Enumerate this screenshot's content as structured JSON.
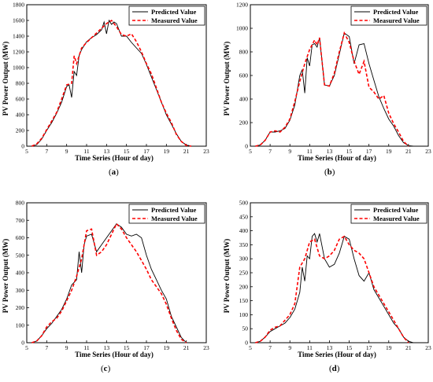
{
  "chart_data": [
    {
      "type": "line",
      "panel_label": "a",
      "xlabel": "Time Series (Hour of day)",
      "ylabel": "PV Power Output (MW)",
      "xlim": [
        5,
        23
      ],
      "ylim": [
        0,
        1800
      ],
      "xticks": [
        5,
        7,
        9,
        11,
        13,
        15,
        17,
        19,
        21,
        23
      ],
      "yticks": [
        0,
        200,
        400,
        600,
        800,
        1000,
        1200,
        1400,
        1600,
        1800
      ],
      "legend_position": "top-right",
      "series": [
        {
          "name": "Predicted Value",
          "color": "#000000",
          "x": [
            5.5,
            6,
            6.5,
            7,
            7.5,
            8,
            8.5,
            9,
            9.25,
            9.5,
            9.75,
            10,
            10.25,
            10.5,
            11,
            11.5,
            12,
            12.5,
            12.75,
            13,
            13.25,
            13.5,
            13.75,
            14,
            14.5,
            15,
            15.5,
            16,
            16.5,
            17,
            17.5,
            18,
            18.5,
            19,
            19.5,
            20,
            20.5,
            21,
            21.5
          ],
          "y": [
            0,
            20,
            90,
            200,
            300,
            420,
            560,
            760,
            780,
            620,
            950,
            900,
            1150,
            1230,
            1330,
            1380,
            1420,
            1480,
            1580,
            1430,
            1600,
            1550,
            1580,
            1560,
            1400,
            1400,
            1320,
            1250,
            1180,
            1040,
            880,
            720,
            560,
            400,
            280,
            160,
            60,
            15,
            0
          ]
        },
        {
          "name": "Measured Value",
          "color": "#ff0000",
          "x": [
            5.5,
            6,
            6.5,
            7,
            7.5,
            8,
            8.5,
            9,
            9.5,
            9.75,
            10,
            10.5,
            11,
            11.5,
            12,
            12.5,
            13,
            13.5,
            14,
            14.5,
            15,
            15.5,
            16,
            16.5,
            17,
            17.5,
            18,
            18.5,
            19,
            19.5,
            20,
            20.5,
            21,
            21.5
          ],
          "y": [
            0,
            30,
            100,
            210,
            320,
            430,
            600,
            780,
            800,
            1150,
            1050,
            1250,
            1320,
            1380,
            1440,
            1500,
            1560,
            1600,
            1520,
            1420,
            1400,
            1430,
            1330,
            1200,
            1050,
            920,
            740,
            560,
            420,
            300,
            150,
            60,
            10,
            0
          ]
        }
      ]
    },
    {
      "type": "line",
      "panel_label": "b",
      "xlabel": "Time Series (Hour of day)",
      "ylabel": "PV Power Output (MW)",
      "xlim": [
        5,
        23
      ],
      "ylim": [
        0,
        1200
      ],
      "xticks": [
        5,
        7,
        9,
        11,
        13,
        15,
        17,
        19,
        21,
        23
      ],
      "yticks": [
        0,
        200,
        400,
        600,
        800,
        1000,
        1200
      ],
      "legend_position": "top-right",
      "series": [
        {
          "name": "Predicted Value",
          "color": "#000000",
          "x": [
            5.5,
            6,
            6.5,
            7,
            7.5,
            8,
            8.5,
            9,
            9.5,
            10,
            10.25,
            10.5,
            10.75,
            11,
            11.25,
            11.5,
            11.75,
            12,
            12.5,
            13,
            13.5,
            14,
            14.5,
            15,
            15.5,
            16,
            16.5,
            17,
            17.5,
            18,
            18.5,
            19,
            19.5,
            20,
            20.5,
            21,
            21.5
          ],
          "y": [
            0,
            10,
            50,
            120,
            120,
            130,
            150,
            220,
            350,
            600,
            650,
            450,
            750,
            680,
            860,
            870,
            840,
            920,
            520,
            510,
            600,
            780,
            960,
            930,
            700,
            860,
            870,
            700,
            560,
            420,
            320,
            230,
            170,
            90,
            30,
            5,
            0
          ]
        },
        {
          "name": "Measured Value",
          "color": "#ff0000",
          "x": [
            5.5,
            6,
            6.5,
            7,
            7.5,
            8,
            8.5,
            9,
            9.5,
            10,
            10.5,
            11,
            11.5,
            11.75,
            12,
            12.5,
            13,
            13.5,
            14,
            14.5,
            15,
            15.5,
            16,
            16.5,
            17,
            17.5,
            18,
            18.5,
            19,
            19.5,
            20,
            20.5,
            21
          ],
          "y": [
            0,
            10,
            50,
            120,
            130,
            120,
            160,
            230,
            380,
            550,
            700,
            820,
            900,
            860,
            920,
            520,
            510,
            620,
            800,
            960,
            880,
            720,
            610,
            720,
            500,
            460,
            400,
            430,
            280,
            190,
            120,
            40,
            0
          ]
        }
      ]
    },
    {
      "type": "line",
      "panel_label": "c",
      "xlabel": "Time Series (Hour of day)",
      "ylabel": "PV Power Output (MW)",
      "xlim": [
        5,
        23
      ],
      "ylim": [
        0,
        800
      ],
      "xticks": [
        5,
        7,
        9,
        11,
        13,
        15,
        17,
        19,
        21,
        23
      ],
      "yticks": [
        0,
        100,
        200,
        300,
        400,
        500,
        600,
        700,
        800
      ],
      "legend_position": "top-right",
      "series": [
        {
          "name": "Predicted Value",
          "color": "#000000",
          "x": [
            5.5,
            6,
            6.5,
            7,
            7.5,
            8,
            8.5,
            9,
            9.5,
            10,
            10.25,
            10.5,
            10.75,
            11,
            11.5,
            12,
            12.5,
            13,
            13.5,
            14,
            14.5,
            15,
            15.5,
            16,
            16.5,
            17,
            17.5,
            18,
            18.5,
            19,
            19.5,
            20,
            20.5,
            21
          ],
          "y": [
            0,
            10,
            40,
            80,
            110,
            150,
            190,
            250,
            330,
            360,
            520,
            400,
            560,
            610,
            620,
            520,
            560,
            600,
            640,
            680,
            660,
            620,
            610,
            620,
            600,
            500,
            420,
            360,
            300,
            250,
            150,
            90,
            30,
            0
          ]
        },
        {
          "name": "Measured Value",
          "color": "#ff0000",
          "x": [
            5.5,
            6,
            6.5,
            7,
            7.5,
            8,
            8.5,
            9,
            9.5,
            10,
            10.5,
            11,
            11.5,
            12,
            12.5,
            13,
            13.5,
            14,
            14.5,
            15,
            15.5,
            16,
            16.5,
            17,
            17.5,
            18,
            18.5,
            19,
            19.5,
            20,
            20.5,
            21
          ],
          "y": [
            0,
            10,
            40,
            90,
            120,
            140,
            180,
            240,
            300,
            380,
            480,
            640,
            650,
            500,
            520,
            560,
            620,
            680,
            650,
            600,
            560,
            520,
            470,
            420,
            360,
            320,
            280,
            220,
            140,
            70,
            20,
            0
          ]
        }
      ]
    },
    {
      "type": "line",
      "panel_label": "d",
      "xlabel": "Time Series (Hour of day)",
      "ylabel": "PV Power Output (MW)",
      "xlim": [
        5,
        23
      ],
      "ylim": [
        0,
        500
      ],
      "xticks": [
        5,
        7,
        9,
        11,
        13,
        15,
        17,
        19,
        21,
        23
      ],
      "yticks": [
        0,
        50,
        100,
        150,
        200,
        250,
        300,
        350,
        400,
        450,
        500
      ],
      "legend_position": "top-right",
      "series": [
        {
          "name": "Predicted Value",
          "color": "#000000",
          "x": [
            5.5,
            6,
            6.5,
            7,
            7.5,
            8,
            8.5,
            9,
            9.5,
            10,
            10.25,
            10.5,
            10.75,
            11,
            11.25,
            11.5,
            11.75,
            12,
            12.5,
            13,
            13.5,
            14,
            14.5,
            15,
            15.5,
            16,
            16.5,
            17,
            17.5,
            18,
            18.5,
            19,
            19.5,
            20,
            20.5,
            21,
            21.5
          ],
          "y": [
            0,
            5,
            20,
            40,
            50,
            60,
            70,
            90,
            120,
            180,
            270,
            220,
            310,
            300,
            380,
            390,
            360,
            390,
            300,
            270,
            280,
            320,
            380,
            370,
            300,
            240,
            220,
            250,
            190,
            160,
            130,
            100,
            70,
            50,
            20,
            5,
            0
          ]
        },
        {
          "name": "Measured Value",
          "color": "#ff0000",
          "x": [
            5.5,
            6,
            6.5,
            7,
            7.5,
            8,
            8.5,
            9,
            9.5,
            10,
            10.5,
            11,
            11.5,
            12,
            12.5,
            13,
            13.5,
            14,
            14.5,
            15,
            15.5,
            16,
            16.5,
            17,
            17.5,
            18,
            18.5,
            19,
            19.5,
            20,
            20.5,
            21
          ],
          "y": [
            0,
            5,
            20,
            45,
            55,
            60,
            80,
            100,
            140,
            270,
            300,
            360,
            370,
            310,
            300,
            310,
            330,
            370,
            380,
            350,
            330,
            320,
            300,
            250,
            200,
            170,
            140,
            110,
            80,
            50,
            20,
            0
          ]
        }
      ]
    }
  ]
}
